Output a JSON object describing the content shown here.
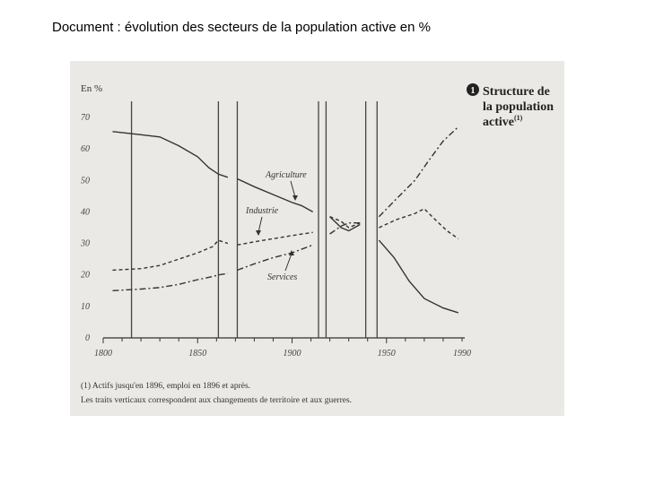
{
  "doc_title": "Document : évolution des secteurs de la population active en %",
  "figure": {
    "badge": "1",
    "heading_lines": [
      "Structure de",
      "la population",
      "active"
    ],
    "heading_sup": "(1)",
    "footnotes": [
      "(1) Actifs jusqu'en 1896, emploi en 1896 et après.",
      "Les traits verticaux correspondent aux changements de territoire et aux guerres."
    ]
  },
  "chart_data": {
    "type": "line",
    "ylabel": "En %",
    "xlim": [
      1800,
      1990
    ],
    "ylim": [
      0,
      70
    ],
    "xticks": [
      1800,
      1850,
      1900,
      1950,
      1990
    ],
    "yticks": [
      0,
      10,
      20,
      30,
      40,
      50,
      60,
      70
    ],
    "vertical_lines": [
      1815,
      1861,
      1871,
      1914,
      1918,
      1939,
      1945
    ],
    "series": [
      {
        "name": "Agriculture",
        "style": "solid",
        "segments": [
          [
            [
              1805,
              65.5
            ],
            [
              1820,
              64.5
            ],
            [
              1830,
              63.8
            ],
            [
              1840,
              61
            ],
            [
              1850,
              57.5
            ],
            [
              1856,
              54
            ],
            [
              1861,
              52
            ],
            [
              1866,
              51
            ]
          ],
          [
            [
              1871,
              50.5
            ],
            [
              1880,
              48
            ],
            [
              1890,
              45.5
            ],
            [
              1900,
              43
            ],
            [
              1905,
              42
            ],
            [
              1911,
              40
            ]
          ],
          [
            [
              1920,
              38.5
            ],
            [
              1926,
              35
            ],
            [
              1930,
              34
            ],
            [
              1936,
              36
            ]
          ],
          [
            [
              1946,
              31
            ],
            [
              1954,
              25.5
            ],
            [
              1962,
              18
            ],
            [
              1970,
              12.5
            ],
            [
              1980,
              9.5
            ],
            [
              1988,
              8
            ]
          ]
        ]
      },
      {
        "name": "Industrie",
        "style": "dashed",
        "segments": [
          [
            [
              1805,
              21.5
            ],
            [
              1820,
              22
            ],
            [
              1830,
              23
            ],
            [
              1840,
              25
            ],
            [
              1850,
              27
            ],
            [
              1858,
              29
            ],
            [
              1861,
              31
            ],
            [
              1866,
              30
            ]
          ],
          [
            [
              1871,
              29.5
            ],
            [
              1880,
              30.5
            ],
            [
              1890,
              31.5
            ],
            [
              1900,
              32.5
            ],
            [
              1911,
              33.5
            ]
          ],
          [
            [
              1920,
              38.5
            ],
            [
              1926,
              37
            ],
            [
              1930,
              35
            ],
            [
              1936,
              36.5
            ]
          ],
          [
            [
              1946,
              35
            ],
            [
              1955,
              37.5
            ],
            [
              1965,
              39.5
            ],
            [
              1970,
              41
            ],
            [
              1975,
              38
            ],
            [
              1982,
              34
            ],
            [
              1988,
              31.5
            ]
          ]
        ]
      },
      {
        "name": "Services",
        "style": "dashdot",
        "segments": [
          [
            [
              1805,
              15
            ],
            [
              1820,
              15.5
            ],
            [
              1830,
              16
            ],
            [
              1840,
              17
            ],
            [
              1850,
              18.5
            ],
            [
              1858,
              19.5
            ],
            [
              1861,
              20
            ],
            [
              1866,
              20.5
            ]
          ],
          [
            [
              1871,
              21.5
            ],
            [
              1880,
              23.5
            ],
            [
              1890,
              25.5
            ],
            [
              1900,
              27
            ],
            [
              1911,
              29.5
            ]
          ],
          [
            [
              1920,
              33
            ],
            [
              1926,
              35.5
            ],
            [
              1930,
              36.5
            ],
            [
              1936,
              36.5
            ]
          ],
          [
            [
              1946,
              38.5
            ],
            [
              1955,
              44
            ],
            [
              1965,
              50
            ],
            [
              1972,
              56
            ],
            [
              1980,
              62.5
            ],
            [
              1988,
              67
            ]
          ]
        ]
      }
    ],
    "annotations": [
      "Agriculture",
      "Industrie",
      "Services"
    ]
  }
}
